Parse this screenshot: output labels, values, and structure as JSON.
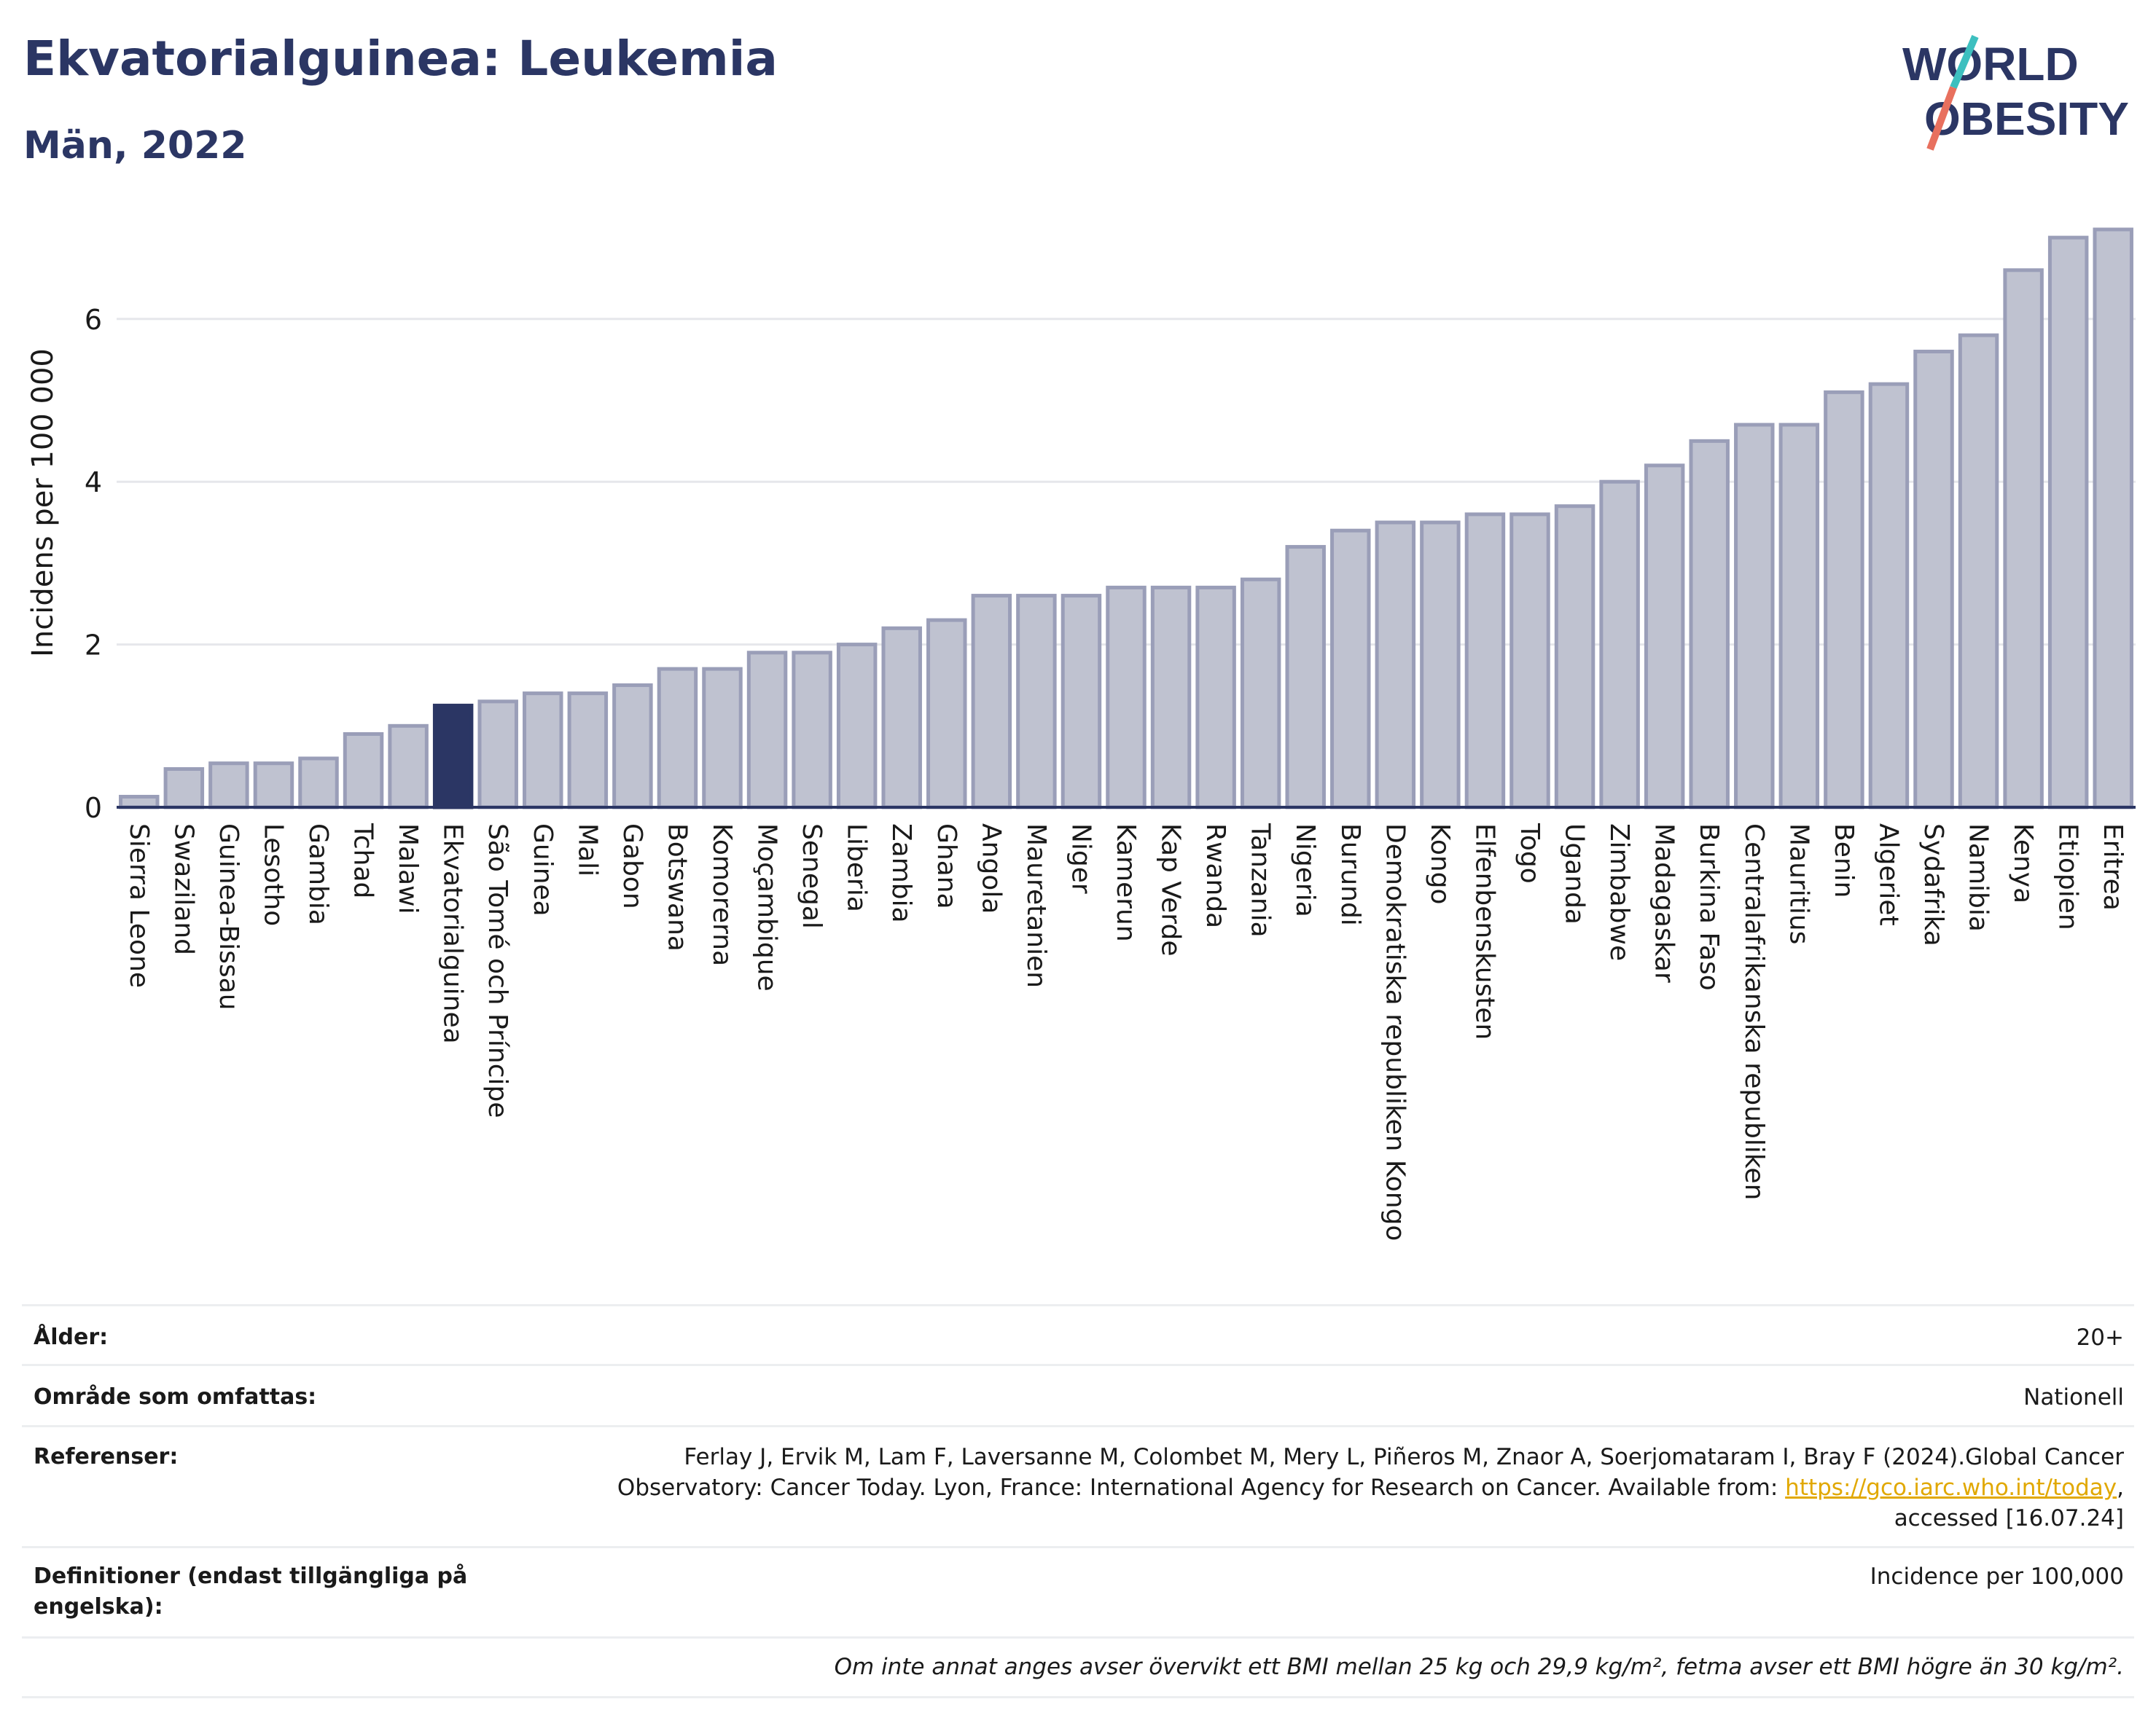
{
  "header": {
    "title": "Ekvatorialguinea: Leukemia",
    "subtitle": "Män, 2022"
  },
  "logo": {
    "line1": "WORLD",
    "line2": "OBESITY",
    "colors": {
      "text": "#2b3664",
      "slash_a": "#3dbfbf",
      "slash_b": "#e8705e"
    }
  },
  "colors": {
    "bar": "#bfc2d0",
    "bar_edge": "#9a9eb8",
    "highlight": "#2b3664",
    "grid": "#e6e7eb",
    "axis": "#2b3664"
  },
  "chart_data": {
    "type": "bar",
    "title": "Ekvatorialguinea: Leukemia",
    "subtitle": "Män, 2022",
    "ylabel": "Incidens per 100 000",
    "xlabel": "",
    "ylim": [
      0,
      7.2
    ],
    "yticks": [
      0,
      2,
      4,
      6
    ],
    "grid": true,
    "highlight": "Ekvatorialguinea",
    "categories": [
      "Sierra Leone",
      "Swaziland",
      "Guinea-Bissau",
      "Lesotho",
      "Gambia",
      "Tchad",
      "Malawi",
      "Ekvatorialguinea",
      "São Tomé och Príncipe",
      "Guinea",
      "Mali",
      "Gabon",
      "Botswana",
      "Komorerna",
      "Moçambique",
      "Senegal",
      "Liberia",
      "Zambia",
      "Ghana",
      "Angola",
      "Mauretanien",
      "Niger",
      "Kamerun",
      "Kap Verde",
      "Rwanda",
      "Tanzania",
      "Nigeria",
      "Burundi",
      "Demokratiska republiken Kongo",
      "Kongo",
      "Elfenbenskusten",
      "Togo",
      "Uganda",
      "Zimbabwe",
      "Madagaskar",
      "Burkina Faso",
      "Centralafrikanska republiken",
      "Mauritius",
      "Benin",
      "Algeriet",
      "Sydafrika",
      "Namibia",
      "Kenya",
      "Etiopien",
      "Eritrea"
    ],
    "values": [
      0.13,
      0.47,
      0.54,
      0.54,
      0.6,
      0.9,
      1.0,
      1.25,
      1.3,
      1.4,
      1.4,
      1.5,
      1.7,
      1.7,
      1.9,
      1.9,
      2.0,
      2.2,
      2.3,
      2.6,
      2.6,
      2.6,
      2.7,
      2.7,
      2.7,
      2.8,
      3.2,
      3.4,
      3.5,
      3.5,
      3.6,
      3.6,
      3.7,
      4.0,
      4.2,
      4.5,
      4.7,
      4.7,
      5.1,
      5.2,
      5.6,
      5.8,
      6.6,
      7.0,
      7.1
    ]
  },
  "info": {
    "age": {
      "label": "Ålder:",
      "value": "20+"
    },
    "area": {
      "label": "Område som omfattas:",
      "value": "Nationell"
    },
    "refs": {
      "label": "Referenser:",
      "line1": "Ferlay J, Ervik M, Lam F, Laversanne M, Colombet M, Mery L, Piñeros M, Znaor A, Soerjomataram I, Bray F (2024).Global Cancer",
      "line2": "Observatory: Cancer Today. Lyon, France: International Agency for Research on Cancer. Available from: ",
      "link": "https://gco.iarc.who.int/today",
      "line2_end": ",",
      "line3": "accessed [16.07.24]"
    },
    "defs": {
      "label_1": "Definitioner (endast tillgängliga på",
      "label_2": "engelska):",
      "value": "Incidence per 100,000"
    },
    "note": "Om inte annat anges avser övervikt ett BMI mellan 25 kg och 29,9 kg/m², fetma avser ett BMI högre än 30 kg/m²."
  }
}
